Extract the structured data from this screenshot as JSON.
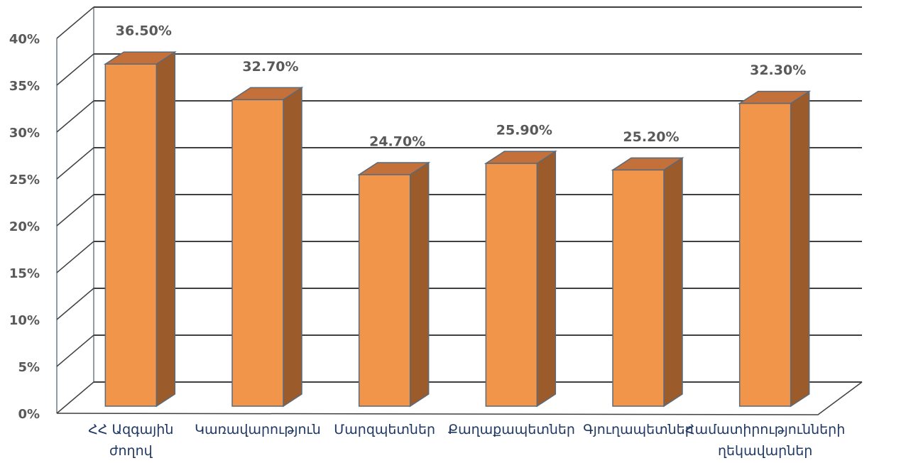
{
  "chart_data": {
    "type": "bar3d",
    "categories": [
      "ՀՀ Ազգային ժողով",
      "Կառավարություն",
      "Մարզպետներ",
      "Քաղաքապետներ",
      "Գյուղապետներ",
      "Համատիրությունների ղեկավարներ"
    ],
    "values": [
      36.5,
      32.7,
      24.7,
      25.9,
      25.2,
      32.3
    ],
    "value_labels": [
      "36.50%",
      "32.70%",
      "24.70%",
      "25.90%",
      "25.20%",
      "32.30%"
    ],
    "color": "#f0954a",
    "ylim": [
      0,
      40
    ],
    "yticks": [
      {
        "value": 0,
        "label": "0%"
      },
      {
        "value": 5,
        "label": "5%"
      },
      {
        "value": 10,
        "label": "10%"
      },
      {
        "value": 15,
        "label": "15%"
      },
      {
        "value": 20,
        "label": "20%"
      },
      {
        "value": 25,
        "label": "25%"
      },
      {
        "value": 30,
        "label": "30%"
      },
      {
        "value": 35,
        "label": "35%"
      },
      {
        "value": 40,
        "label": "40%"
      }
    ],
    "grid": true
  }
}
